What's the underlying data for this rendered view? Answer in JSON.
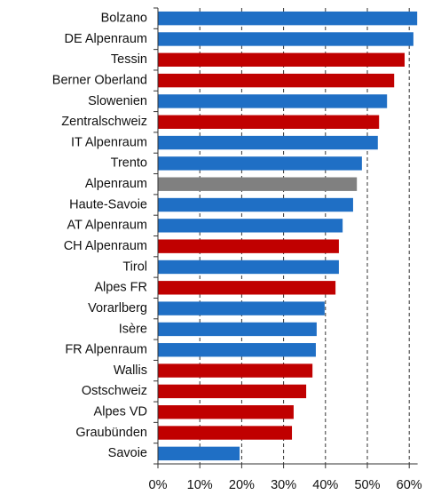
{
  "chart_data": {
    "type": "bar",
    "orientation": "horizontal",
    "categories": [
      "Bolzano",
      "DE Alpenraum",
      "Tessin",
      "Berner Oberland",
      "Slowenien",
      "Zentralschweiz",
      "IT Alpenraum",
      "Trento",
      "Alpenraum",
      "Haute-Savoie",
      "AT Alpenraum",
      "CH Alpenraum",
      "Tirol",
      "Alpes FR",
      "Vorarlberg",
      "Isère",
      "FR Alpenraum",
      "Wallis",
      "Ostschweiz",
      "Alpes VD",
      "Graubünden",
      "Savoie"
    ],
    "values": [
      61.9,
      61.0,
      58.9,
      56.4,
      54.7,
      52.8,
      52.5,
      48.7,
      47.5,
      46.6,
      44.1,
      43.2,
      43.2,
      42.4,
      39.8,
      37.9,
      37.7,
      36.9,
      35.4,
      32.4,
      32.0,
      19.5
    ],
    "colors": [
      "#1f6fc5",
      "#1f6fc5",
      "#c00000",
      "#c00000",
      "#1f6fc5",
      "#c00000",
      "#1f6fc5",
      "#1f6fc5",
      "#808080",
      "#1f6fc5",
      "#1f6fc5",
      "#c00000",
      "#1f6fc5",
      "#c00000",
      "#1f6fc5",
      "#1f6fc5",
      "#1f6fc5",
      "#c00000",
      "#c00000",
      "#c00000",
      "#c00000",
      "#1f6fc5"
    ],
    "xlim": [
      0,
      62
    ],
    "xticks": [
      {
        "value": 0,
        "label": "0%"
      },
      {
        "value": 10,
        "label": "10%"
      },
      {
        "value": 20,
        "label": "20%"
      },
      {
        "value": 30,
        "label": "30%"
      },
      {
        "value": 40,
        "label": "40%"
      },
      {
        "value": 50,
        "label": "50%"
      },
      {
        "value": 60,
        "label": "60%"
      }
    ],
    "grid": true
  }
}
